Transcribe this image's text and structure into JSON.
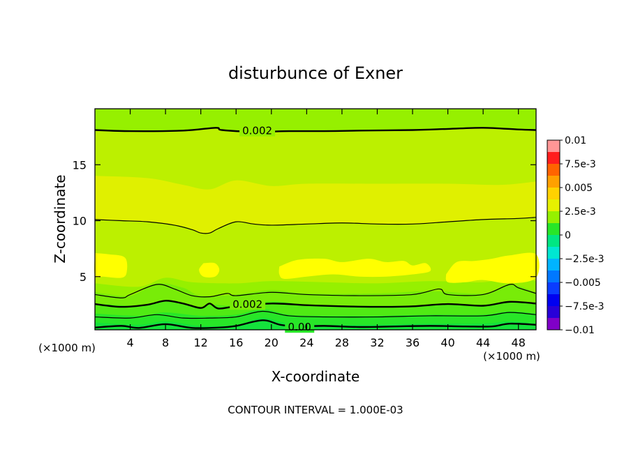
{
  "chart_data": {
    "type": "heatmap",
    "title": "disturbunce of Exner",
    "xlabel": "X-coordinate",
    "ylabel": "Z-coordinate",
    "x_unit_left": "(×1000 m)",
    "x_unit_right": "(×1000 m)",
    "xlim": [
      0,
      50
    ],
    "ylim": [
      0.25,
      20
    ],
    "x_ticks": [
      {
        "value": 4,
        "label": "4"
      },
      {
        "value": 8,
        "label": "8"
      },
      {
        "value": 12,
        "label": "12"
      },
      {
        "value": 16,
        "label": "16"
      },
      {
        "value": 20,
        "label": "20"
      },
      {
        "value": 24,
        "label": "24"
      },
      {
        "value": 28,
        "label": "28"
      },
      {
        "value": 32,
        "label": "32"
      },
      {
        "value": 36,
        "label": "36"
      },
      {
        "value": 40,
        "label": "40"
      },
      {
        "value": 44,
        "label": "44"
      },
      {
        "value": 48,
        "label": "48"
      }
    ],
    "y_ticks": [
      {
        "value": 5,
        "label": "5"
      },
      {
        "value": 10,
        "label": "10"
      },
      {
        "value": 15,
        "label": "15"
      }
    ],
    "footer": "CONTOUR INTERVAL = 1.000E-03",
    "colorbar": {
      "range": [
        -0.01,
        0.01
      ],
      "levels": [
        {
          "lo": -0.01,
          "hi": -0.00875,
          "color": "#8000c8"
        },
        {
          "lo": -0.00875,
          "hi": -0.0075,
          "color": "#2800d8"
        },
        {
          "lo": -0.0075,
          "hi": -0.00625,
          "color": "#0000f0"
        },
        {
          "lo": -0.00625,
          "hi": -0.005,
          "color": "#0a3cff"
        },
        {
          "lo": -0.005,
          "hi": -0.00375,
          "color": "#0078ff"
        },
        {
          "lo": -0.00375,
          "hi": -0.0025,
          "color": "#00b4ff"
        },
        {
          "lo": -0.0025,
          "hi": -0.00125,
          "color": "#00e6d2"
        },
        {
          "lo": -0.00125,
          "hi": 0,
          "color": "#00e682"
        },
        {
          "lo": 0,
          "hi": 0.00125,
          "color": "#28e628"
        },
        {
          "lo": 0.00125,
          "hi": 0.0025,
          "color": "#96f000"
        },
        {
          "lo": 0.0025,
          "hi": 0.00375,
          "color": "#e6f000"
        },
        {
          "lo": 0.00375,
          "hi": 0.005,
          "color": "#ffd200"
        },
        {
          "lo": 0.005,
          "hi": 0.00625,
          "color": "#ffa000"
        },
        {
          "lo": 0.00625,
          "hi": 0.0075,
          "color": "#ff6400"
        },
        {
          "lo": 0.0075,
          "hi": 0.00875,
          "color": "#ff1e1e"
        },
        {
          "lo": 0.00875,
          "hi": 0.01,
          "color": "#ff9696"
        }
      ],
      "labels": [
        {
          "value": 0.01,
          "label": "0.01"
        },
        {
          "value": 0.0075,
          "label": "7.5e-3"
        },
        {
          "value": 0.005,
          "label": "0.005"
        },
        {
          "value": 0.0025,
          "label": "2.5e-3"
        },
        {
          "value": 0,
          "label": "0"
        },
        {
          "value": -0.0025,
          "label": "−2.5e-3"
        },
        {
          "value": -0.005,
          "label": "−0.005"
        },
        {
          "value": -0.0075,
          "label": "−7.5e-3"
        },
        {
          "value": -0.01,
          "label": "−0.01"
        }
      ]
    },
    "field_bands": [
      {
        "name": "band-1",
        "color": "#28e628",
        "top": [
          [
            0,
            0.9
          ],
          [
            5,
            0.7
          ],
          [
            8,
            1.0
          ],
          [
            12,
            0.6
          ],
          [
            16,
            0.7
          ],
          [
            19,
            1.3
          ],
          [
            22,
            0.8
          ],
          [
            26,
            0.7
          ],
          [
            32,
            0.7
          ],
          [
            38,
            0.8
          ],
          [
            44,
            0.8
          ],
          [
            47,
            1.0
          ],
          [
            50,
            0.8
          ]
        ]
      },
      {
        "name": "band-2",
        "color": "#50ea14",
        "top": [
          [
            0,
            1.7
          ],
          [
            5,
            1.5
          ],
          [
            8,
            1.8
          ],
          [
            12,
            1.5
          ],
          [
            16,
            1.6
          ],
          [
            19,
            2.1
          ],
          [
            22,
            1.6
          ],
          [
            26,
            1.5
          ],
          [
            32,
            1.5
          ],
          [
            38,
            1.6
          ],
          [
            44,
            1.6
          ],
          [
            47,
            1.9
          ],
          [
            50,
            1.7
          ]
        ]
      },
      {
        "name": "band-3",
        "color": "#78ec08",
        "top": [
          [
            0,
            2.6
          ],
          [
            5,
            2.4
          ],
          [
            8,
            2.8
          ],
          [
            12,
            2.3
          ],
          [
            13,
            2.5
          ],
          [
            16,
            2.4
          ],
          [
            20,
            2.8
          ],
          [
            24,
            2.5
          ],
          [
            30,
            2.4
          ],
          [
            36,
            2.4
          ],
          [
            40,
            2.6
          ],
          [
            44,
            2.5
          ],
          [
            47,
            2.8
          ],
          [
            50,
            2.6
          ]
        ]
      },
      {
        "name": "band-4",
        "color": "#96f000",
        "top": [
          [
            0,
            3.6
          ],
          [
            4,
            3.3
          ],
          [
            7,
            4.4
          ],
          [
            10,
            4.0
          ],
          [
            12,
            3.3
          ],
          [
            16,
            3.4
          ],
          [
            20,
            3.8
          ],
          [
            24,
            3.5
          ],
          [
            32,
            3.5
          ],
          [
            38,
            3.7
          ],
          [
            44,
            3.5
          ],
          [
            47,
            4.3
          ],
          [
            50,
            3.6
          ]
        ]
      },
      {
        "name": "band-5",
        "color": "#bcf000",
        "top": [
          [
            0,
            4.4
          ],
          [
            5,
            4.1
          ],
          [
            8,
            4.9
          ],
          [
            11,
            4.5
          ],
          [
            16,
            4.4
          ],
          [
            20,
            4.6
          ],
          [
            26,
            4.5
          ],
          [
            32,
            4.4
          ],
          [
            38,
            4.6
          ],
          [
            44,
            4.5
          ],
          [
            47,
            5.0
          ],
          [
            50,
            4.6
          ]
        ]
      },
      {
        "name": "band-6",
        "color": "#e0f000",
        "top": [
          [
            0,
            10.1
          ],
          [
            6,
            9.9
          ],
          [
            10,
            9.5
          ],
          [
            12,
            8.9
          ],
          [
            13,
            8.9
          ],
          [
            14.5,
            9.5
          ],
          [
            16,
            9.9
          ],
          [
            20,
            9.6
          ],
          [
            28,
            9.8
          ],
          [
            36,
            9.7
          ],
          [
            44,
            10.1
          ],
          [
            50,
            10.3
          ]
        ]
      },
      {
        "name": "band-7",
        "color": "#bcf000",
        "top": [
          [
            0,
            14.0
          ],
          [
            6,
            13.8
          ],
          [
            10,
            13.2
          ],
          [
            13,
            12.8
          ],
          [
            16,
            13.6
          ],
          [
            20,
            13.1
          ],
          [
            24,
            13.3
          ],
          [
            32,
            13.3
          ],
          [
            40,
            13.3
          ],
          [
            46,
            13.2
          ],
          [
            50,
            13.5
          ]
        ]
      },
      {
        "name": "band-8",
        "color": "#96f000",
        "top": [
          [
            0,
            18.1
          ],
          [
            4,
            18.0
          ],
          [
            10,
            18.1
          ],
          [
            14,
            18.2
          ],
          [
            18,
            17.9
          ],
          [
            26,
            18.0
          ],
          [
            36,
            18.1
          ],
          [
            44,
            18.3
          ],
          [
            50,
            18.1
          ]
        ]
      },
      {
        "name": "band-9",
        "color": "#78ec08",
        "top": [
          [
            0,
            20
          ],
          [
            50,
            20
          ]
        ]
      }
    ],
    "blobs": [
      {
        "name": "blob-1",
        "color": "#ffff00",
        "points": [
          [
            0,
            7.1
          ],
          [
            1.5,
            7.0
          ],
          [
            3.4,
            6.7
          ],
          [
            3.6,
            5.4
          ],
          [
            3.0,
            4.9
          ],
          [
            1,
            5.0
          ],
          [
            0,
            5.1
          ]
        ]
      },
      {
        "name": "blob-2",
        "color": "#ffff00",
        "points": [
          [
            12.3,
            6.2
          ],
          [
            13.6,
            6.2
          ],
          [
            14.1,
            5.6
          ],
          [
            13.6,
            5.0
          ],
          [
            12.3,
            5.0
          ],
          [
            11.8,
            5.6
          ]
        ]
      },
      {
        "name": "blob-3",
        "color": "#ffff00",
        "points": [
          [
            20.9,
            5.9
          ],
          [
            23,
            6.5
          ],
          [
            26,
            6.6
          ],
          [
            28,
            6.3
          ],
          [
            31,
            6.6
          ],
          [
            33,
            6.3
          ],
          [
            35,
            6.4
          ],
          [
            36,
            6.0
          ],
          [
            37.5,
            6.2
          ],
          [
            38,
            5.5
          ],
          [
            36,
            5.2
          ],
          [
            33,
            5.0
          ],
          [
            30,
            5.0
          ],
          [
            27,
            5.2
          ],
          [
            24,
            5.0
          ],
          [
            21.5,
            4.8
          ],
          [
            20.9,
            5.2
          ]
        ]
      },
      {
        "name": "blob-4",
        "color": "#ffff00",
        "points": [
          [
            39.8,
            5.2
          ],
          [
            41,
            6.3
          ],
          [
            43,
            6.4
          ],
          [
            45,
            6.6
          ],
          [
            47,
            6.9
          ],
          [
            50,
            7.0
          ],
          [
            50,
            4.9
          ],
          [
            47,
            4.4
          ],
          [
            44,
            4.7
          ],
          [
            42,
            4.5
          ],
          [
            40,
            4.5
          ]
        ]
      }
    ],
    "contours": [
      {
        "name": "contour-0.00",
        "stroke_width": 2.4,
        "label": "0.00",
        "label_x": 23.2,
        "label_y": 0.55,
        "points": [
          [
            0,
            0.45
          ],
          [
            3,
            0.6
          ],
          [
            5,
            0.42
          ],
          [
            8,
            0.75
          ],
          [
            11,
            0.42
          ],
          [
            14,
            0.45
          ],
          [
            16,
            0.6
          ],
          [
            19,
            1.1
          ],
          [
            21,
            0.7
          ],
          [
            23,
            0.55
          ],
          [
            26,
            0.6
          ],
          [
            30,
            0.5
          ],
          [
            34,
            0.55
          ],
          [
            38,
            0.6
          ],
          [
            42,
            0.55
          ],
          [
            45,
            0.55
          ],
          [
            47,
            0.8
          ],
          [
            50,
            0.7
          ]
        ]
      },
      {
        "name": "contour-0.001",
        "stroke_width": 1.2,
        "points": [
          [
            0,
            1.4
          ],
          [
            4,
            1.3
          ],
          [
            7,
            1.6
          ],
          [
            10,
            1.3
          ],
          [
            13,
            1.3
          ],
          [
            16,
            1.4
          ],
          [
            19,
            1.9
          ],
          [
            22,
            1.5
          ],
          [
            26,
            1.4
          ],
          [
            32,
            1.4
          ],
          [
            38,
            1.5
          ],
          [
            44,
            1.5
          ],
          [
            47,
            1.8
          ],
          [
            50,
            1.6
          ]
        ]
      },
      {
        "name": "contour-0.002-lower",
        "stroke_width": 2.4,
        "label": "0.002",
        "label_x": 17.3,
        "label_y": 2.6,
        "points": [
          [
            0,
            2.55
          ],
          [
            3,
            2.3
          ],
          [
            6,
            2.5
          ],
          [
            8,
            2.85
          ],
          [
            10,
            2.6
          ],
          [
            12,
            2.2
          ],
          [
            13,
            2.6
          ],
          [
            14,
            2.15
          ],
          [
            16,
            2.35
          ],
          [
            20,
            2.6
          ],
          [
            24,
            2.45
          ],
          [
            28,
            2.35
          ],
          [
            32,
            2.3
          ],
          [
            36,
            2.35
          ],
          [
            40,
            2.55
          ],
          [
            44,
            2.4
          ],
          [
            47,
            2.75
          ],
          [
            50,
            2.6
          ]
        ]
      },
      {
        "name": "contour-0.003-lower",
        "stroke_width": 1.2,
        "points": [
          [
            0,
            3.4
          ],
          [
            3,
            3.1
          ],
          [
            4,
            3.4
          ],
          [
            7,
            4.3
          ],
          [
            9,
            3.9
          ],
          [
            11,
            3.3
          ],
          [
            13,
            3.2
          ],
          [
            15,
            3.5
          ],
          [
            16,
            3.3
          ],
          [
            20,
            3.6
          ],
          [
            24,
            3.4
          ],
          [
            30,
            3.3
          ],
          [
            36,
            3.4
          ],
          [
            39,
            3.9
          ],
          [
            40,
            3.4
          ],
          [
            44,
            3.4
          ],
          [
            47,
            4.3
          ],
          [
            48,
            4.0
          ],
          [
            50,
            3.5
          ]
        ]
      },
      {
        "name": "contour-0.003-upper",
        "stroke_width": 1.2,
        "points": [
          [
            0,
            10.1
          ],
          [
            3,
            10.0
          ],
          [
            6,
            9.9
          ],
          [
            9,
            9.6
          ],
          [
            11,
            9.2
          ],
          [
            12,
            8.9
          ],
          [
            13,
            8.9
          ],
          [
            14,
            9.3
          ],
          [
            16,
            9.9
          ],
          [
            18,
            9.7
          ],
          [
            20,
            9.6
          ],
          [
            24,
            9.7
          ],
          [
            28,
            9.8
          ],
          [
            32,
            9.7
          ],
          [
            36,
            9.7
          ],
          [
            40,
            9.9
          ],
          [
            44,
            10.1
          ],
          [
            48,
            10.2
          ],
          [
            50,
            10.3
          ]
        ]
      },
      {
        "name": "contour-0.002-upper",
        "stroke_width": 2.4,
        "label": "0.002",
        "label_x": 18.4,
        "label_y": 18.1,
        "points": [
          [
            0,
            18.1
          ],
          [
            4,
            18.0
          ],
          [
            10,
            18.05
          ],
          [
            13.7,
            18.3
          ],
          [
            14.4,
            18.1
          ],
          [
            18,
            17.95
          ],
          [
            22,
            18.0
          ],
          [
            26,
            18.0
          ],
          [
            30,
            18.05
          ],
          [
            36,
            18.1
          ],
          [
            40,
            18.2
          ],
          [
            44,
            18.3
          ],
          [
            48,
            18.15
          ],
          [
            50,
            18.1
          ]
        ]
      }
    ]
  }
}
